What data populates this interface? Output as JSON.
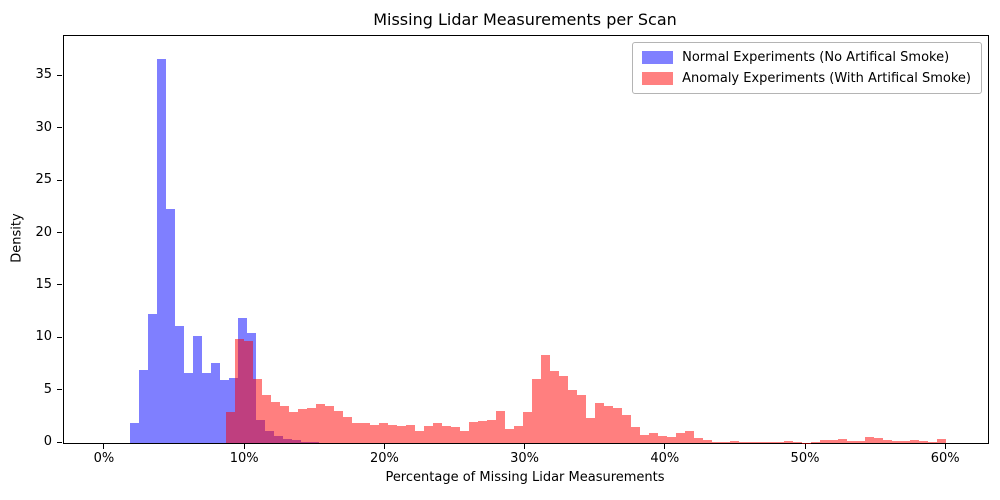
{
  "title": "Missing Lidar Measurements per Scan",
  "xlabel": "Percentage of Missing Lidar Measurements",
  "ylabel": "Density",
  "legend": [
    {
      "label": "Normal Experiments (No Artifical Smoke)",
      "swatch_color": "#8080ff"
    },
    {
      "label": "Anomaly Experiments (With Artifical Smoke)",
      "swatch_color": "#ff8080"
    }
  ],
  "axes": {
    "x_tick_values": [
      0,
      10,
      20,
      30,
      40,
      50,
      60
    ],
    "x_tick_labels": [
      "0%",
      "10%",
      "20%",
      "30%",
      "40%",
      "50%",
      "60%"
    ],
    "y_tick_values": [
      0,
      5,
      10,
      15,
      20,
      25,
      30,
      35
    ],
    "y_tick_labels": [
      "0",
      "5",
      "10",
      "15",
      "20",
      "25",
      "30",
      "35"
    ]
  },
  "chart_data": {
    "type": "bar",
    "subtype": "overlapping-histograms",
    "title": "Missing Lidar Measurements per Scan",
    "xlabel": "Percentage of Missing Lidar Measurements",
    "ylabel": "Density",
    "xlim": [
      -2.92,
      62.98
    ],
    "ylim": [
      0,
      38.85
    ],
    "grid": false,
    "legend_position": "upper right",
    "bin_width_pct": 0.642,
    "overlap_color_on_white": "#bf4080",
    "series": [
      {
        "name": "Normal Experiments (No Artifical Smoke)",
        "color": "rgba(0,0,255,0.5)",
        "color_on_white": "#8080ff",
        "bin_start_pct": 1.78,
        "densities": [
          1.9,
          7.0,
          12.3,
          36.7,
          22.3,
          11.2,
          6.7,
          10.2,
          6.7,
          7.6,
          6.0,
          6.2,
          11.9,
          10.5,
          2.2,
          1.1,
          0.65,
          0.4,
          0.25,
          0.12,
          0.1
        ]
      },
      {
        "name": "Anomaly Experiments (With Artifical Smoke)",
        "color": "rgba(255,0,0,0.5)",
        "color_on_white": "#ff8080",
        "bin_start_pct": 8.63,
        "densities": [
          3.0,
          9.9,
          9.7,
          6.1,
          4.6,
          3.9,
          3.5,
          3.0,
          3.2,
          3.3,
          3.7,
          3.5,
          3.1,
          2.5,
          1.9,
          1.9,
          1.75,
          1.9,
          1.75,
          1.6,
          1.75,
          1.1,
          1.6,
          1.9,
          1.6,
          1.5,
          1.1,
          2.0,
          2.1,
          2.2,
          3.1,
          1.3,
          1.6,
          3.0,
          6.1,
          8.4,
          6.9,
          6.4,
          5.1,
          4.6,
          2.4,
          3.8,
          3.5,
          3.3,
          2.7,
          1.5,
          0.8,
          0.95,
          0.7,
          0.55,
          0.95,
          1.15,
          0.5,
          0.25,
          0.1,
          0.05,
          0.2,
          0.05,
          0.05,
          0.05,
          0.05,
          0.05,
          0.16,
          0.05,
          0.03,
          0.05,
          0.25,
          0.3,
          0.35,
          0.16,
          0.16,
          0.6,
          0.45,
          0.3,
          0.16,
          0.16,
          0.29,
          0.16,
          0.05,
          0.35
        ]
      }
    ]
  }
}
